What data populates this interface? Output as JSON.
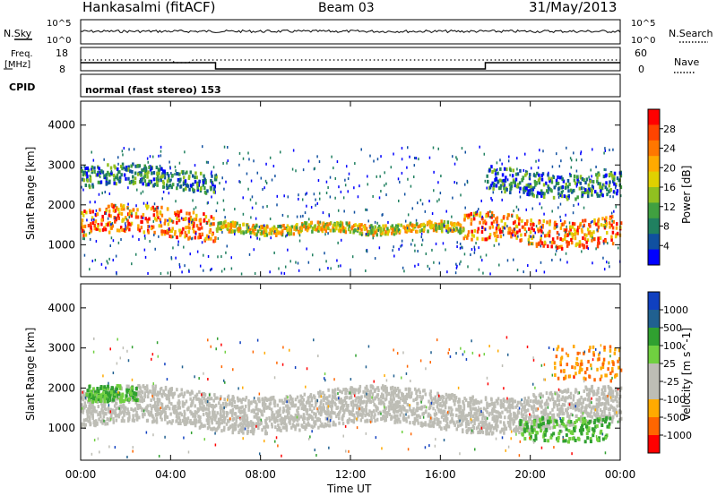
{
  "header": {
    "station": "Hankasalmi (fitACF)",
    "beam": "Beam 03",
    "date": "31/May/2013"
  },
  "strips": {
    "nsky_label": "N.Sky",
    "nsky_ticks": [
      "10^5",
      "10^0"
    ],
    "nsearch_label": "N.Search",
    "nsearch_ticks": [
      "10^5",
      "10^0"
    ],
    "freq_label_1": "Freq.",
    "freq_label_2": "[MHz]",
    "freq_ticks": [
      "18",
      "8"
    ],
    "nave_label": "Nave",
    "nave_ticks": [
      "60",
      "0"
    ],
    "cpid_label": "CPID",
    "cpid_text": "normal (fast stereo) 153"
  },
  "chart_data": [
    {
      "type": "heatmap",
      "name": "power",
      "ylabel": "Slant Range [km]",
      "xlabel": "Time UT",
      "x_ticks": [
        "00:00",
        "04:00",
        "08:00",
        "12:00",
        "16:00",
        "20:00",
        "00:00"
      ],
      "y_ticks": [
        1000,
        2000,
        3000,
        4000
      ],
      "ylim": [
        200,
        4600
      ],
      "colorbar": {
        "label": "Power [dB]",
        "ticks": [
          "28",
          "24",
          "20",
          "16",
          "12",
          "8",
          "4"
        ],
        "colors": [
          "#ff0000",
          "#ff4400",
          "#ff7700",
          "#ffaa00",
          "#e0d000",
          "#90c020",
          "#40a040",
          "#208060",
          "#1050a0",
          "#0000ff"
        ]
      },
      "bands": [
        {
          "x_start": 0,
          "x_end": 6,
          "range_center": 1600,
          "range_width": 700,
          "level": "high"
        },
        {
          "x_start": 6,
          "x_end": 17,
          "range_center": 1450,
          "range_width": 250,
          "level": "medium"
        },
        {
          "x_start": 17,
          "x_end": 24,
          "range_center": 1400,
          "range_width": 700,
          "level": "high"
        },
        {
          "x_start": 0,
          "x_end": 6,
          "range_center": 2700,
          "range_width": 500,
          "level": "low"
        },
        {
          "x_start": 18,
          "x_end": 24,
          "range_center": 2600,
          "range_width": 600,
          "level": "low"
        }
      ]
    },
    {
      "type": "heatmap",
      "name": "velocity",
      "ylabel": "Slant Range [km]",
      "xlabel": "Time UT",
      "x_ticks": [
        "00:00",
        "04:00",
        "08:00",
        "12:00",
        "16:00",
        "20:00",
        "00:00"
      ],
      "y_ticks": [
        1000,
        2000,
        3000,
        4000
      ],
      "ylim": [
        200,
        4600
      ],
      "colorbar": {
        "label": "Velocity [m s^-1]",
        "ticks": [
          "1000",
          "500",
          "100",
          "25",
          "-25",
          "-100",
          "-500",
          "-1000"
        ],
        "colors": [
          "#1040c0",
          "#206090",
          "#30a030",
          "#70d040",
          "#bdbdb5",
          "#bdbdb5",
          "#ffaa00",
          "#ff6600",
          "#ff0000"
        ]
      }
    }
  ],
  "footer": {
    "xlabel": "Time UT"
  }
}
